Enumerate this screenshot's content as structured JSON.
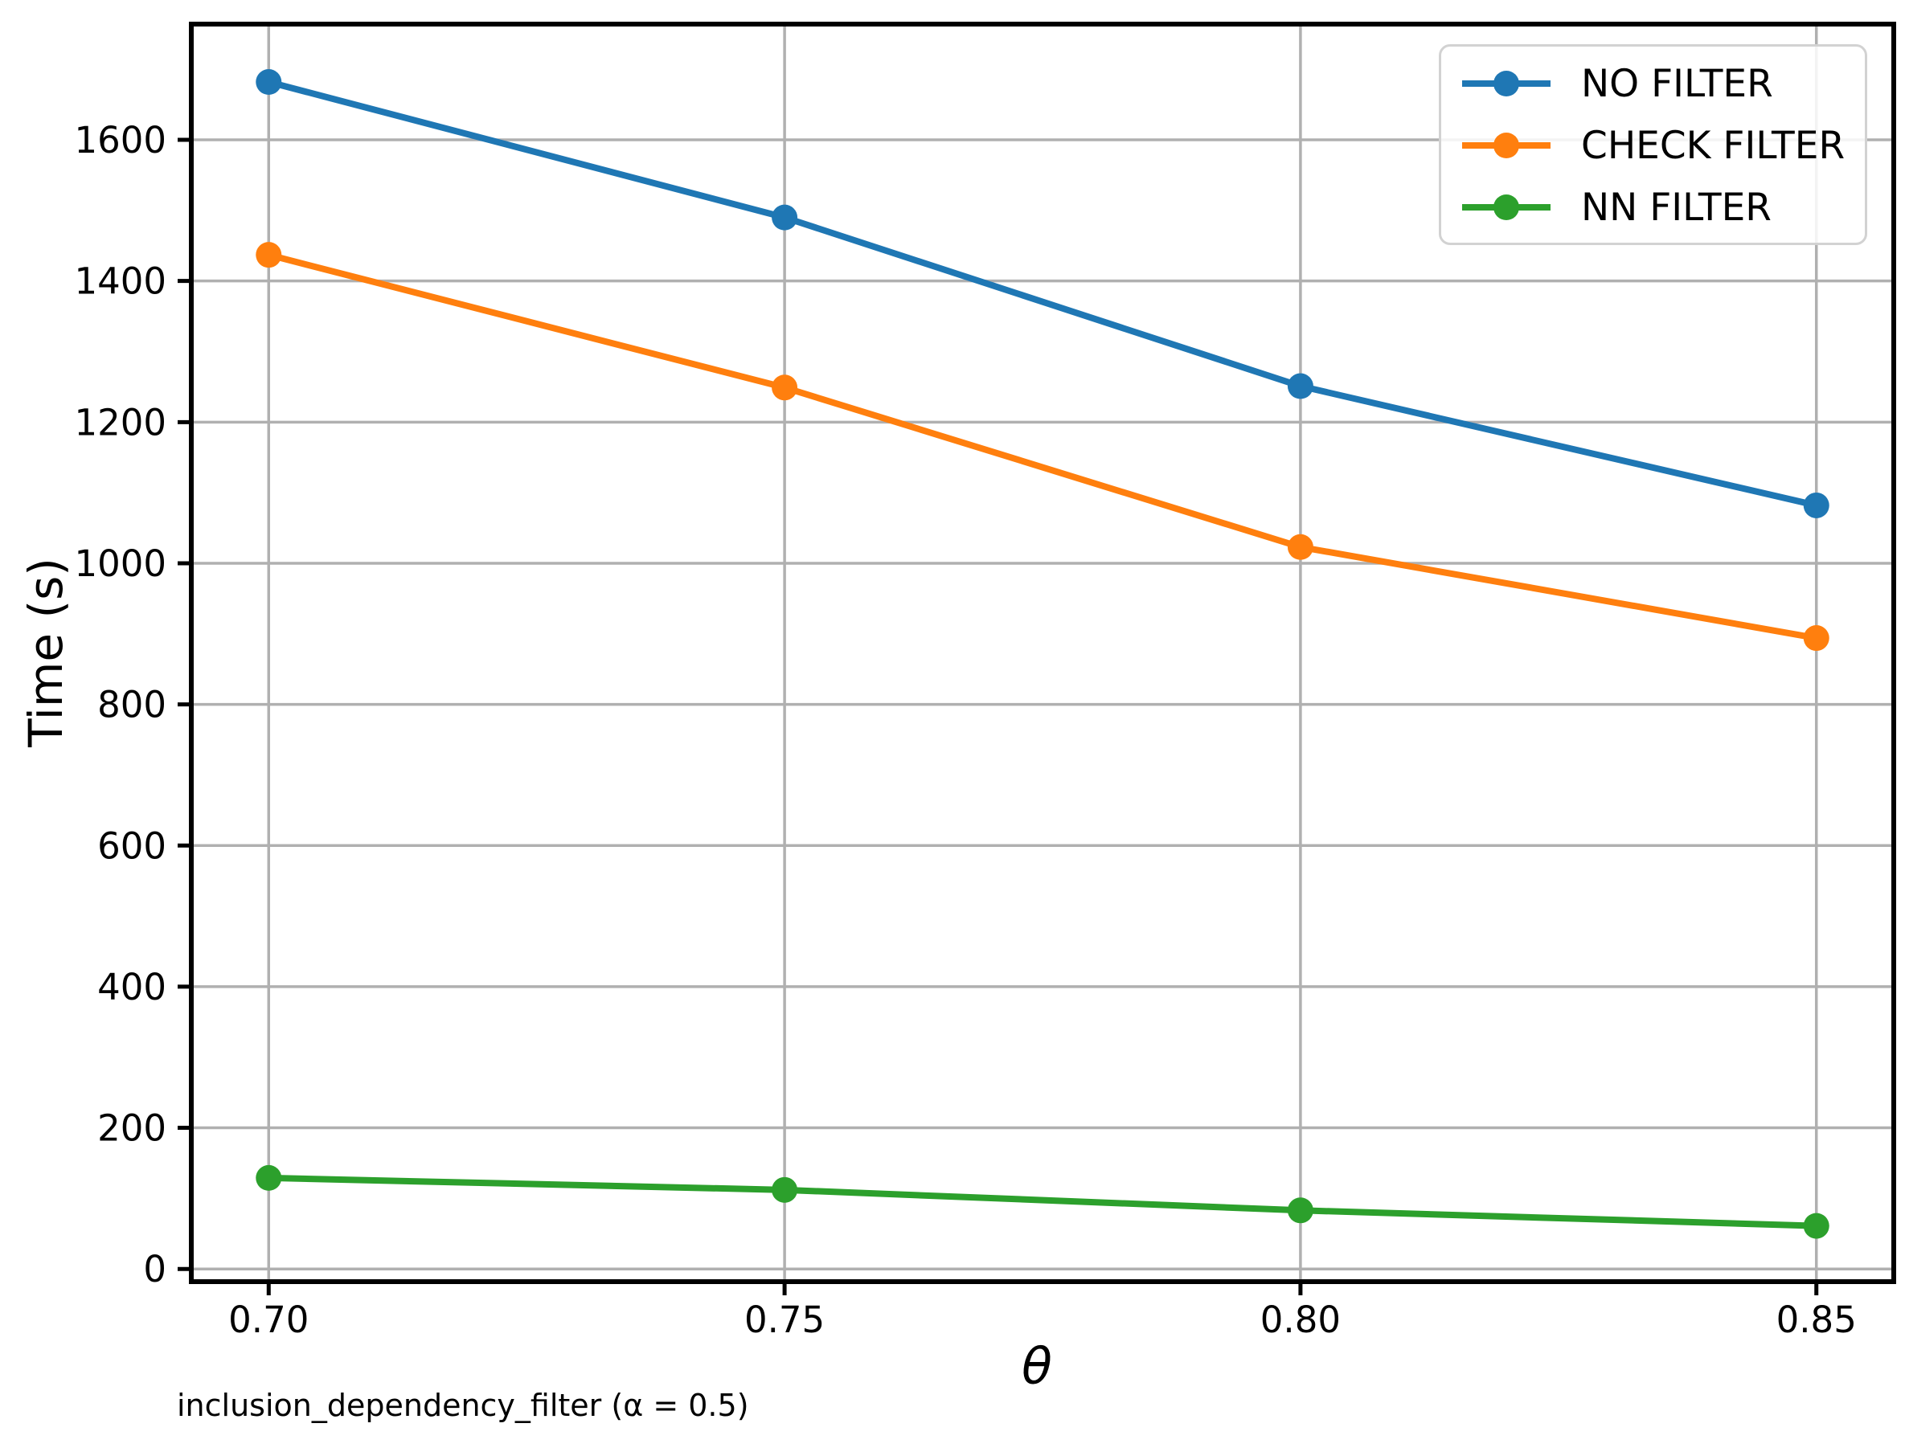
{
  "figure": {
    "background": "#ffffff",
    "caption": "inclusion_dependency_filter (α = 0.5)"
  },
  "chart_data": {
    "type": "line",
    "title": "",
    "xlabel": "θ",
    "ylabel": "Time (s)",
    "caption": "inclusion_dependency_filter (α = 0.5)",
    "x": [
      0.7,
      0.75,
      0.8,
      0.85
    ],
    "x_tick_labels": [
      "0.70",
      "0.75",
      "0.80",
      "0.85"
    ],
    "y_ticks": [
      0,
      200,
      400,
      600,
      800,
      1000,
      1200,
      1400,
      1600
    ],
    "xlim": [
      0.6925,
      0.8575
    ],
    "ylim": [
      -18,
      1764
    ],
    "grid": true,
    "legend_position": "upper right",
    "series": [
      {
        "name": "NO FILTER",
        "color": "#1f77b4",
        "values": [
          1682,
          1490,
          1251,
          1082
        ]
      },
      {
        "name": "CHECK FILTER",
        "color": "#ff7f0e",
        "values": [
          1437,
          1249,
          1023,
          894
        ]
      },
      {
        "name": "NN FILTER",
        "color": "#2ca02c",
        "values": [
          129,
          112,
          83,
          61
        ]
      }
    ]
  },
  "style_colors": {
    "grid": "#b0b0b0",
    "frame": "#000000",
    "tick_text": "#000000",
    "legend_border": "#d2d2d2"
  }
}
